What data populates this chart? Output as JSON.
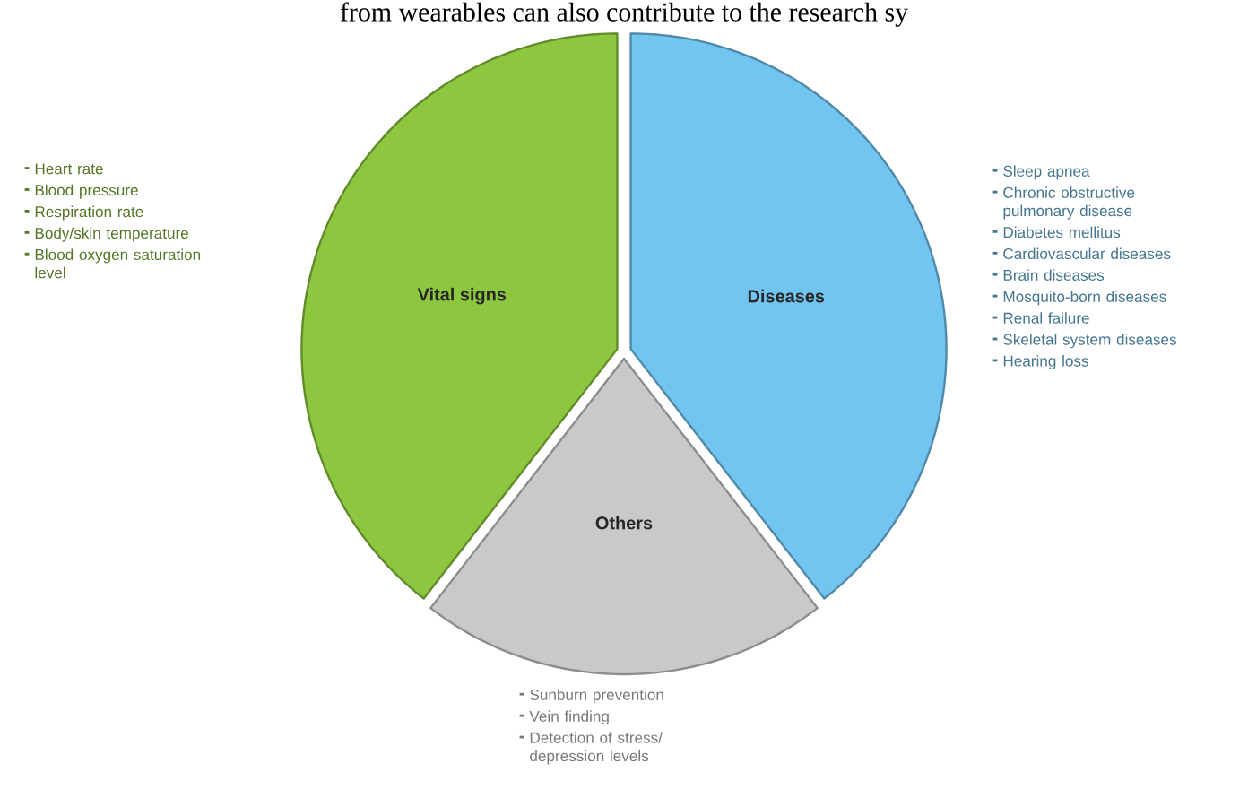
{
  "chart_data": {
    "type": "pie",
    "categories": [
      "Diseases",
      "Others",
      "Vital signs"
    ],
    "values": [
      39.5,
      21,
      39.5
    ],
    "colors": [
      "#72c5f0",
      "#c9c9c9",
      "#8dc63f"
    ],
    "annotations": [
      "from wearables can also contribute to the research sy",
      {
        "text": "Sleep apnea",
        "x": "Diseases"
      },
      {
        "text": "Chronic obstructive pulmonary disease",
        "x": "Diseases"
      },
      {
        "text": "Diabetes mellitus",
        "x": "Diseases"
      },
      {
        "text": "Cardiovascular diseases",
        "x": "Diseases"
      },
      {
        "text": "Brain diseases",
        "x": "Diseases"
      },
      {
        "text": "Mosquito-born diseases",
        "x": "Diseases"
      },
      {
        "text": "Renal failure",
        "x": "Diseases"
      },
      {
        "text": "Skeletal system diseases",
        "x": "Diseases"
      },
      {
        "text": "Hearing loss",
        "x": "Diseases"
      },
      {
        "text": "Sunburn prevention",
        "x": "Others"
      },
      {
        "text": "Vein finding",
        "x": "Others"
      },
      {
        "text": "Detection of stress/ depression levels",
        "x": "Others"
      },
      {
        "text": "Heart rate",
        "x": "Vital signs"
      },
      {
        "text": "Blood pressure",
        "x": "Vital signs"
      },
      {
        "text": "Respiration rate",
        "x": "Vital signs"
      },
      {
        "text": "Body/skin temperature",
        "x": "Vital signs"
      },
      {
        "text": "Blood oxygen saturation level",
        "x": "Vital signs"
      }
    ]
  }
}
